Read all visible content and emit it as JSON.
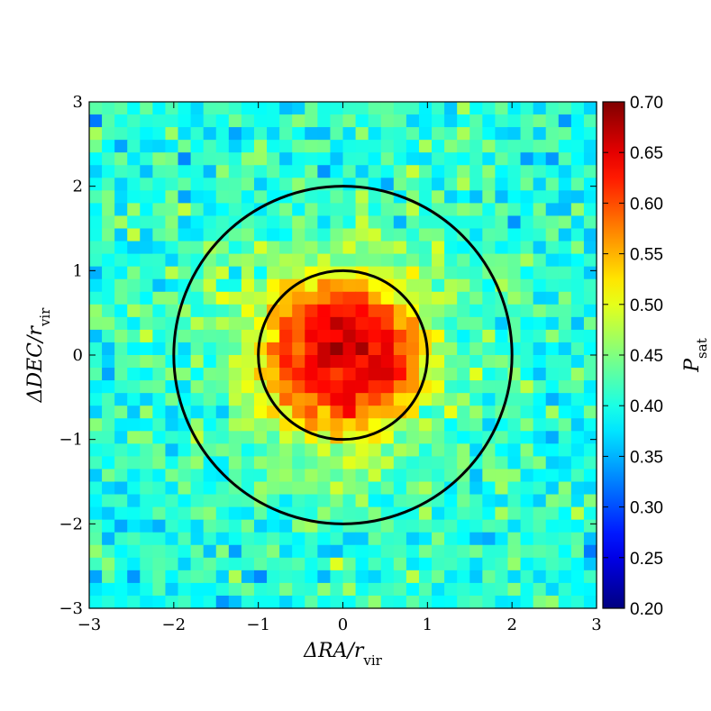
{
  "chart_data": {
    "type": "heatmap",
    "title": "",
    "xlabel": "ΔRA/r",
    "xlabel_sub": "vir",
    "ylabel": "ΔDEC/r",
    "ylabel_sub": "vir",
    "xlim": [
      -3,
      3
    ],
    "ylim": [
      -3,
      3
    ],
    "xticks": [
      "−3",
      "−2",
      "−1",
      "0",
      "1",
      "2",
      "3"
    ],
    "yticks": [
      "−3",
      "−2",
      "−1",
      "0",
      "1",
      "2",
      "3"
    ],
    "xtick_values": [
      -3,
      -2,
      -1,
      0,
      1,
      2,
      3
    ],
    "ytick_values": [
      -3,
      -2,
      -1,
      0,
      1,
      2,
      3
    ],
    "grid": false,
    "bins_per_axis": 40,
    "model": {
      "background": 0.4,
      "peak": 0.66,
      "core_radius": 0.85,
      "falloff_width": 0.45
    },
    "circles": [
      {
        "center": [
          0,
          0
        ],
        "radius": 1
      },
      {
        "center": [
          0,
          0
        ],
        "radius": 2
      }
    ],
    "colorbar": {
      "label": "P",
      "label_sub": "sat",
      "colormap": "jet",
      "range": [
        0.2,
        0.7
      ],
      "tick_values": [
        0.2,
        0.25,
        0.3,
        0.35,
        0.4,
        0.45,
        0.5,
        0.55,
        0.6,
        0.65,
        0.7
      ],
      "ticks": [
        "0.20",
        "0.25",
        "0.30",
        "0.35",
        "0.40",
        "0.45",
        "0.50",
        "0.55",
        "0.60",
        "0.65",
        "0.70"
      ]
    }
  }
}
